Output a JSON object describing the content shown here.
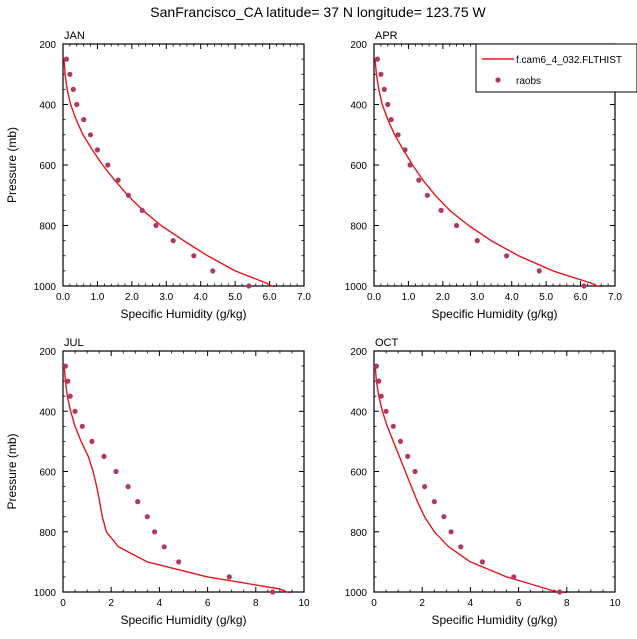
{
  "title": "SanFrancisco_CA  latitude= 37 N longitude= 123.75 W",
  "colors": {
    "model": "#e8141c",
    "obs": "#b03a5e"
  },
  "legend": {
    "model_label": "f.cam6_4_032.FLTHIST",
    "obs_label": "raobs",
    "placement": "top-right of APR panel"
  },
  "chart_data": [
    {
      "type": "line",
      "panel": "JAN",
      "title": "JAN",
      "xlabel": "Specific Humidity (g/kg)",
      "ylabel": "Pressure (mb)",
      "xlim": [
        0,
        7
      ],
      "ylim": [
        200,
        1000
      ],
      "y_inverted": true,
      "xticks": [
        "0.0",
        "1.0",
        "2.0",
        "3.0",
        "4.0",
        "5.0",
        "6.0",
        "7.0"
      ],
      "yticks": [
        "200",
        "400",
        "600",
        "800",
        "1000"
      ],
      "model": [
        [
          0.03,
          250
        ],
        [
          0.06,
          300
        ],
        [
          0.12,
          350
        ],
        [
          0.22,
          400
        ],
        [
          0.38,
          450
        ],
        [
          0.58,
          500
        ],
        [
          0.85,
          550
        ],
        [
          1.15,
          600
        ],
        [
          1.5,
          650
        ],
        [
          1.88,
          700
        ],
        [
          2.32,
          750
        ],
        [
          2.85,
          800
        ],
        [
          3.5,
          850
        ],
        [
          4.2,
          900
        ],
        [
          5.0,
          950
        ],
        [
          5.9,
          990
        ],
        [
          6.4,
          1020
        ]
      ],
      "obs": [
        [
          0.1,
          250
        ],
        [
          0.2,
          300
        ],
        [
          0.3,
          350
        ],
        [
          0.4,
          400
        ],
        [
          0.6,
          450
        ],
        [
          0.8,
          500
        ],
        [
          1.0,
          550
        ],
        [
          1.3,
          600
        ],
        [
          1.6,
          650
        ],
        [
          1.9,
          700
        ],
        [
          2.3,
          750
        ],
        [
          2.7,
          800
        ],
        [
          3.2,
          850
        ],
        [
          3.8,
          900
        ],
        [
          4.35,
          950
        ],
        [
          5.4,
          1000
        ]
      ]
    },
    {
      "type": "line",
      "panel": "APR",
      "title": "APR",
      "xlabel": "Specific Humidity (g/kg)",
      "ylabel": "",
      "xlim": [
        0,
        7
      ],
      "ylim": [
        200,
        1000
      ],
      "y_inverted": true,
      "xticks": [
        "0.0",
        "1.0",
        "2.0",
        "3.0",
        "4.0",
        "5.0",
        "6.0",
        "7.0"
      ],
      "yticks": [
        "200",
        "400",
        "600",
        "800",
        "1000"
      ],
      "model": [
        [
          0.03,
          250
        ],
        [
          0.07,
          300
        ],
        [
          0.14,
          350
        ],
        [
          0.24,
          400
        ],
        [
          0.4,
          450
        ],
        [
          0.6,
          500
        ],
        [
          0.85,
          550
        ],
        [
          1.12,
          600
        ],
        [
          1.42,
          650
        ],
        [
          1.78,
          700
        ],
        [
          2.2,
          750
        ],
        [
          2.75,
          800
        ],
        [
          3.4,
          850
        ],
        [
          4.2,
          900
        ],
        [
          5.2,
          950
        ],
        [
          6.3,
          990
        ],
        [
          6.9,
          1020
        ]
      ],
      "obs": [
        [
          0.1,
          250
        ],
        [
          0.2,
          300
        ],
        [
          0.3,
          350
        ],
        [
          0.4,
          400
        ],
        [
          0.5,
          450
        ],
        [
          0.7,
          500
        ],
        [
          0.9,
          550
        ],
        [
          1.05,
          600
        ],
        [
          1.3,
          650
        ],
        [
          1.55,
          700
        ],
        [
          1.95,
          750
        ],
        [
          2.4,
          800
        ],
        [
          3.0,
          850
        ],
        [
          3.85,
          900
        ],
        [
          4.8,
          950
        ],
        [
          6.1,
          1000
        ]
      ]
    },
    {
      "type": "line",
      "panel": "JUL",
      "title": "JUL",
      "xlabel": "Specific Humidity (g/kg)",
      "ylabel": "Pressure (mb)",
      "xlim": [
        0,
        10
      ],
      "ylim": [
        200,
        1000
      ],
      "y_inverted": true,
      "xticks": [
        "0",
        "2",
        "4",
        "6",
        "8",
        "10"
      ],
      "yticks": [
        "200",
        "400",
        "600",
        "800",
        "1000"
      ],
      "model": [
        [
          0.05,
          250
        ],
        [
          0.1,
          300
        ],
        [
          0.18,
          350
        ],
        [
          0.32,
          400
        ],
        [
          0.5,
          450
        ],
        [
          0.75,
          500
        ],
        [
          1.05,
          550
        ],
        [
          1.25,
          600
        ],
        [
          1.4,
          650
        ],
        [
          1.52,
          700
        ],
        [
          1.63,
          750
        ],
        [
          1.8,
          800
        ],
        [
          2.3,
          850
        ],
        [
          3.5,
          900
        ],
        [
          6.0,
          950
        ],
        [
          9.0,
          990
        ],
        [
          9.6,
          1010
        ]
      ],
      "obs": [
        [
          0.1,
          250
        ],
        [
          0.2,
          300
        ],
        [
          0.3,
          350
        ],
        [
          0.5,
          400
        ],
        [
          0.8,
          450
        ],
        [
          1.2,
          500
        ],
        [
          1.7,
          550
        ],
        [
          2.2,
          600
        ],
        [
          2.7,
          650
        ],
        [
          3.1,
          700
        ],
        [
          3.5,
          750
        ],
        [
          3.8,
          800
        ],
        [
          4.2,
          850
        ],
        [
          4.8,
          900
        ],
        [
          6.9,
          950
        ],
        [
          8.7,
          1000
        ]
      ]
    },
    {
      "type": "line",
      "panel": "OCT",
      "title": "OCT",
      "xlabel": "Specific Humidity (g/kg)",
      "ylabel": "",
      "xlim": [
        0,
        10
      ],
      "ylim": [
        200,
        1000
      ],
      "y_inverted": true,
      "xticks": [
        "0",
        "2",
        "4",
        "6",
        "8",
        "10"
      ],
      "yticks": [
        "200",
        "400",
        "600",
        "800",
        "1000"
      ],
      "model": [
        [
          0.05,
          250
        ],
        [
          0.1,
          300
        ],
        [
          0.2,
          350
        ],
        [
          0.35,
          400
        ],
        [
          0.55,
          450
        ],
        [
          0.8,
          500
        ],
        [
          1.05,
          550
        ],
        [
          1.3,
          600
        ],
        [
          1.55,
          650
        ],
        [
          1.8,
          700
        ],
        [
          2.1,
          750
        ],
        [
          2.5,
          800
        ],
        [
          3.1,
          850
        ],
        [
          4.0,
          900
        ],
        [
          5.5,
          950
        ],
        [
          7.4,
          995
        ],
        [
          8.6,
          1015
        ]
      ],
      "obs": [
        [
          0.1,
          250
        ],
        [
          0.2,
          300
        ],
        [
          0.3,
          350
        ],
        [
          0.5,
          400
        ],
        [
          0.8,
          450
        ],
        [
          1.1,
          500
        ],
        [
          1.4,
          550
        ],
        [
          1.7,
          600
        ],
        [
          2.1,
          650
        ],
        [
          2.5,
          700
        ],
        [
          2.9,
          750
        ],
        [
          3.2,
          800
        ],
        [
          3.6,
          850
        ],
        [
          4.5,
          900
        ],
        [
          5.8,
          950
        ],
        [
          7.7,
          1000
        ]
      ]
    }
  ]
}
